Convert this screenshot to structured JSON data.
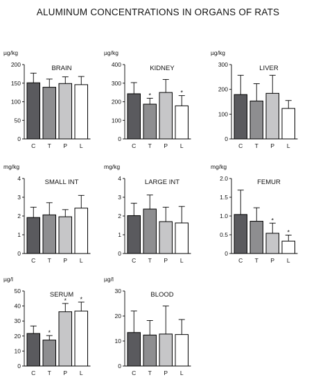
{
  "figure": {
    "title": "ALUMINUM CONCENTRATIONS IN ORGANS OF RATS"
  },
  "colors": {
    "C": "#5a5a5e",
    "T": "#8e8e90",
    "P": "#c6c6c8",
    "L": "#ffffff",
    "stroke": "#000000"
  },
  "chart_data": [
    {
      "type": "bar",
      "title": "BRAIN",
      "ylabel": "µg/kg",
      "categories": [
        "C",
        "T",
        "P",
        "L"
      ],
      "values": [
        151,
        139,
        149,
        146
      ],
      "error": [
        26,
        22,
        18,
        22
      ],
      "significant": [
        false,
        false,
        false,
        false
      ],
      "ylim": [
        0,
        200
      ],
      "yticks": [
        "0",
        "50",
        "100",
        "150",
        "200"
      ],
      "ytick_values": [
        0,
        50,
        100,
        150,
        200
      ]
    },
    {
      "type": "bar",
      "title": "KIDNEY",
      "ylabel": "µg/kg",
      "categories": [
        "C",
        "T",
        "P",
        "L"
      ],
      "values": [
        243,
        187,
        250,
        178
      ],
      "error": [
        60,
        32,
        70,
        55
      ],
      "significant": [
        false,
        true,
        false,
        true
      ],
      "ylim": [
        0,
        400
      ],
      "yticks": [
        "0",
        "100",
        "200",
        "300",
        "400"
      ],
      "ytick_values": [
        0,
        100,
        200,
        300,
        400
      ]
    },
    {
      "type": "bar",
      "title": "LIVER",
      "ylabel": "µg/kg",
      "categories": [
        "C",
        "T",
        "P",
        "L"
      ],
      "values": [
        179,
        153,
        184,
        123
      ],
      "error": [
        78,
        70,
        73,
        32
      ],
      "significant": [
        false,
        false,
        false,
        false
      ],
      "ylim": [
        0,
        300
      ],
      "yticks": [
        "0",
        "100",
        "200",
        "300"
      ],
      "ytick_values": [
        0,
        100,
        200,
        300
      ]
    },
    {
      "type": "bar",
      "title": "SMALL INT",
      "ylabel": "mg/kg",
      "categories": [
        "C",
        "T",
        "P",
        "L"
      ],
      "values": [
        1.92,
        2.06,
        1.96,
        2.42
      ],
      "error": [
        0.55,
        0.65,
        0.38,
        0.68
      ],
      "significant": [
        false,
        false,
        false,
        false
      ],
      "ylim": [
        0,
        4
      ],
      "yticks": [
        "0",
        "1",
        "2",
        "3",
        "4"
      ],
      "ytick_values": [
        0,
        1,
        2,
        3,
        4
      ]
    },
    {
      "type": "bar",
      "title": "LARGE INT",
      "ylabel": "mg/kg",
      "categories": [
        "C",
        "T",
        "P",
        "L"
      ],
      "values": [
        2.02,
        2.37,
        1.7,
        1.63
      ],
      "error": [
        0.66,
        0.75,
        0.77,
        0.88
      ],
      "significant": [
        false,
        false,
        false,
        false
      ],
      "ylim": [
        0,
        4
      ],
      "yticks": [
        "0",
        "1",
        "2",
        "3",
        "4"
      ],
      "ytick_values": [
        0,
        1,
        2,
        3,
        4
      ]
    },
    {
      "type": "bar",
      "title": "FEMUR",
      "ylabel": "mg/kg",
      "categories": [
        "C",
        "T",
        "P",
        "L"
      ],
      "values": [
        1.04,
        0.86,
        0.54,
        0.33
      ],
      "error": [
        0.65,
        0.36,
        0.27,
        0.16
      ],
      "significant": [
        false,
        false,
        true,
        true
      ],
      "ylim": [
        0,
        2
      ],
      "yticks": [
        "0",
        "0.5",
        "1.0",
        "1.5",
        "2.0"
      ],
      "ytick_values": [
        0,
        0.5,
        1,
        1.5,
        2
      ]
    },
    {
      "type": "bar",
      "title": "SERUM",
      "ylabel": "µg/l",
      "categories": [
        "C",
        "T",
        "P",
        "L"
      ],
      "values": [
        21.7,
        17.3,
        36.2,
        36.6
      ],
      "error": [
        5,
        3,
        5.5,
        6
      ],
      "significant": [
        false,
        true,
        true,
        true
      ],
      "ylim": [
        0,
        50
      ],
      "yticks": [
        "0",
        "10",
        "20",
        "30",
        "40",
        "50"
      ],
      "ytick_values": [
        0,
        10,
        20,
        30,
        40,
        50
      ]
    },
    {
      "type": "bar",
      "title": "BLOOD",
      "ylabel": "µg/l",
      "categories": [
        "C",
        "T",
        "P",
        "L"
      ],
      "values": [
        13.4,
        12.4,
        12.8,
        12.6
      ],
      "error": [
        8.6,
        5.8,
        11.2,
        6
      ],
      "significant": [
        false,
        false,
        false,
        false
      ],
      "ylim": [
        0,
        30
      ],
      "yticks": [
        "0",
        "10",
        "20",
        "30"
      ],
      "ytick_values": [
        0,
        10,
        20,
        30
      ]
    }
  ]
}
